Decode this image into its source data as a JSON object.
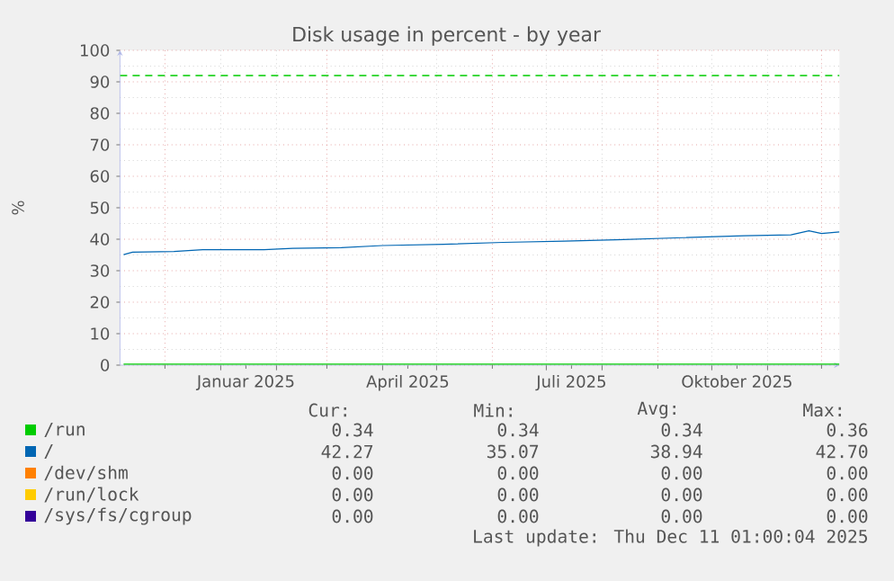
{
  "chart_data": {
    "type": "line",
    "title": "Disk usage in percent - by year",
    "ylabel": "%",
    "x": [
      "2024-11-08",
      "2024-11-13",
      "2024-12-06",
      "2024-12-22",
      "2025-01-25",
      "2025-02-10",
      "2025-03-09",
      "2025-04-01",
      "2025-05-05",
      "2025-06-07",
      "2025-07-11",
      "2025-08-13",
      "2025-09-15",
      "2025-10-19",
      "2025-11-14",
      "2025-11-24",
      "2025-12-01",
      "2025-12-11"
    ],
    "series": [
      {
        "name": "/run",
        "color": "#00cc00",
        "values": [
          0.3,
          0.3,
          0.3,
          0.3,
          0.3,
          0.3,
          0.3,
          0.3,
          0.3,
          0.3,
          0.3,
          0.3,
          0.3,
          0.3,
          0.3,
          0.3,
          0.3,
          0.3
        ]
      },
      {
        "name": "/",
        "color": "#0066b3",
        "values": [
          35.1,
          35.9,
          36.1,
          36.7,
          36.7,
          37.1,
          37.3,
          38.0,
          38.4,
          39.0,
          39.4,
          39.9,
          40.5,
          41.1,
          41.4,
          42.7,
          41.8,
          42.3
        ]
      },
      {
        "name": "/dev/shm",
        "color": "#ff8000",
        "values": [
          null,
          null,
          null,
          null,
          null,
          null,
          null,
          null,
          null,
          null,
          null,
          null,
          null,
          null,
          null,
          null,
          null,
          null
        ]
      },
      {
        "name": "/run/lock",
        "color": "#ffcc00",
        "values": [
          null,
          null,
          null,
          null,
          null,
          null,
          null,
          null,
          null,
          null,
          null,
          null,
          null,
          null,
          null,
          null,
          null,
          null
        ]
      },
      {
        "name": "/sys/fs/cgroup",
        "color": "#330099",
        "values": [
          null,
          null,
          null,
          null,
          null,
          null,
          null,
          null,
          null,
          null,
          null,
          null,
          null,
          null,
          null,
          null,
          null,
          null
        ]
      }
    ],
    "xlim": [
      "2024-11-06",
      "2025-12-11"
    ],
    "xticks": [
      {
        "value": "2024-12-01",
        "label": null
      },
      {
        "value": "2025-01-15",
        "label": "Januar 2025"
      },
      {
        "value": "2025-03-01",
        "label": null
      },
      {
        "value": "2025-04-15",
        "label": "April 2025"
      },
      {
        "value": "2025-06-01",
        "label": null
      },
      {
        "value": "2025-07-15",
        "label": "Juli 2025"
      },
      {
        "value": "2025-09-01",
        "label": null
      },
      {
        "value": "2025-10-15",
        "label": "Oktober 2025"
      },
      {
        "value": "2025-12-01",
        "label": null
      }
    ],
    "ylim": [
      0,
      100
    ],
    "yticks": [
      0,
      10,
      20,
      30,
      40,
      50,
      60,
      70,
      80,
      90,
      100
    ],
    "grid": true,
    "legend": "bottom",
    "ref_lines": [
      {
        "axis": "y",
        "value": 92,
        "color": "#00cc00",
        "line_style": "dashed"
      }
    ],
    "annotations": [
      "Cur:",
      "Min:",
      "Avg:",
      "Max:",
      "0.34",
      "0.34",
      "0.34",
      "0.36",
      "42.27",
      "35.07",
      "38.94",
      "42.70",
      "0.00",
      "0.00",
      "0.00",
      "0.00",
      "0.00",
      "0.00",
      "0.00",
      "0.00",
      "0.00",
      "0.00",
      "0.00",
      "0.00",
      "Last update: Thu Dec 11 01:00:04 2025"
    ]
  }
}
